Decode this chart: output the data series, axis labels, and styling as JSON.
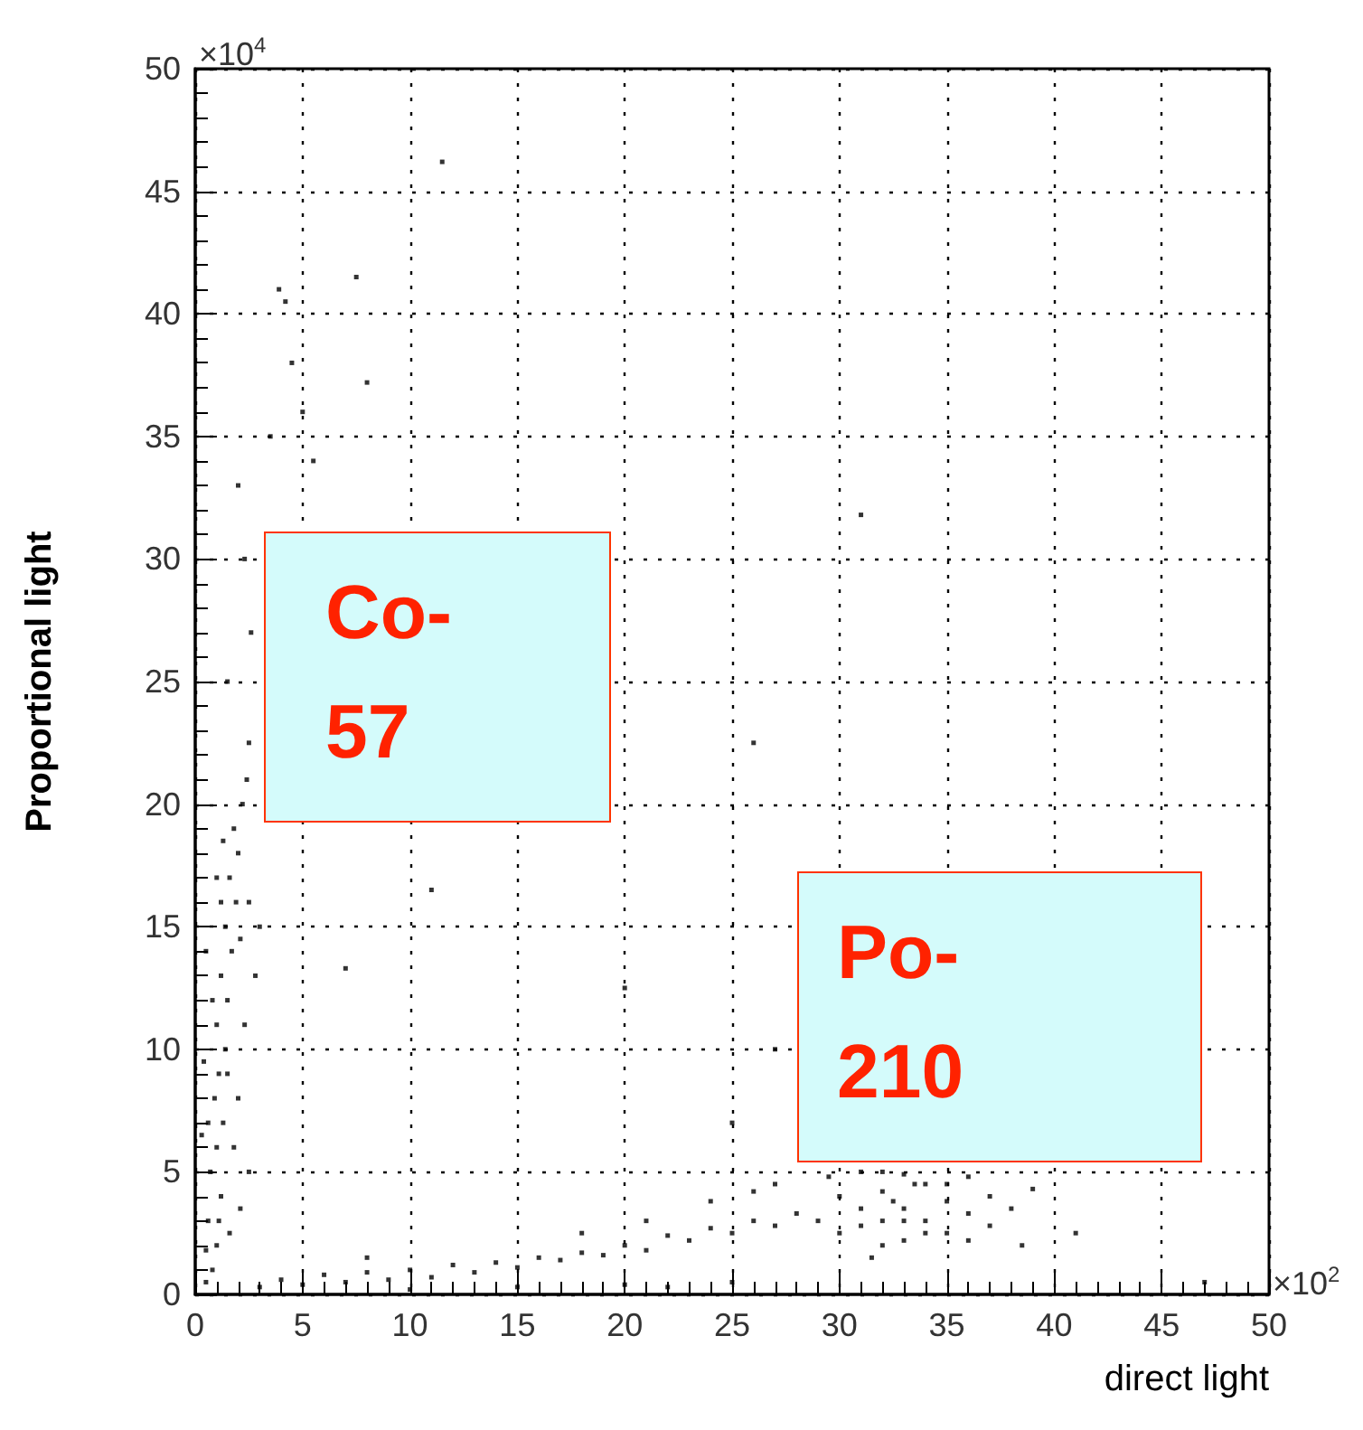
{
  "chart_data": {
    "type": "scatter",
    "xlabel": "direct light",
    "ylabel": "Proportional light",
    "color": "#000000",
    "marker": "square",
    "grid": true,
    "xlim": [
      0,
      50
    ],
    "ylim": [
      0,
      50
    ],
    "xticks": [
      0,
      5,
      10,
      15,
      20,
      25,
      30,
      35,
      40,
      45,
      50
    ],
    "yticks": [
      0,
      5,
      10,
      15,
      20,
      25,
      30,
      35,
      40,
      45,
      50
    ],
    "annotations": [
      "×10$^{4}$",
      "×10$^{2}$",
      "Co-\n57",
      "Po-\n210"
    ],
    "x": [
      0.5,
      0.8,
      1,
      0.6,
      1.2,
      0.7,
      1,
      1.3,
      0.9,
      1.1,
      1.4,
      1.0,
      1.5,
      1.2,
      1.7,
      1.4,
      1.9,
      1.6,
      2.0,
      1.8,
      2.2,
      2.4,
      2.5,
      1.5,
      2.6,
      2.3,
      2,
      3.5,
      4.5,
      4.2,
      3.9,
      5,
      5.5,
      7.5,
      11.5,
      8,
      2.5,
      2,
      0.4,
      2.3,
      0.5,
      2.8,
      1,
      2.5,
      3,
      0.5,
      1.6,
      2.1,
      0.3,
      1.8,
      1.2,
      0.8,
      1.5,
      0.6,
      1.1,
      2.1,
      1.3,
      3,
      4,
      5,
      6,
      7,
      8,
      9,
      10,
      11,
      12,
      13,
      14,
      15,
      16,
      17,
      18,
      19,
      20,
      21,
      22,
      23,
      24,
      25,
      26,
      27,
      28,
      10,
      15,
      20,
      22,
      25,
      8,
      18,
      21,
      24,
      26,
      27,
      29,
      30,
      30,
      31,
      31,
      32,
      32,
      32,
      33,
      33,
      33,
      34,
      34,
      35,
      35,
      36,
      36,
      37,
      37,
      38,
      39,
      38.5,
      31.5,
      29.5,
      31,
      32.5,
      33.5,
      34,
      35,
      33,
      32,
      36,
      11,
      26,
      20,
      27,
      25,
      31,
      41,
      47,
      7
    ],
    "values": [
      0.5,
      1,
      2,
      3,
      4,
      5,
      6,
      7,
      8,
      9,
      10,
      11,
      12,
      13,
      14,
      15,
      16,
      17,
      18,
      19,
      20,
      21,
      22.5,
      25,
      27,
      30,
      33,
      35,
      38,
      40.5,
      41,
      36,
      34,
      41.5,
      46.2,
      37.2,
      5,
      8,
      9.5,
      11,
      14,
      13,
      17,
      16,
      15,
      1.8,
      2.5,
      3.5,
      6.5,
      6,
      16,
      12,
      9,
      7,
      3,
      14.5,
      18.5,
      0.3,
      0.6,
      0.4,
      0.8,
      0.5,
      0.9,
      0.6,
      1.0,
      0.7,
      1.2,
      0.9,
      1.3,
      1.1,
      1.5,
      1.4,
      1.7,
      1.6,
      2.0,
      1.8,
      2.4,
      2.2,
      2.7,
      2.5,
      3.0,
      2.8,
      3.3,
      0.2,
      0.3,
      0.4,
      0.3,
      0.5,
      1.5,
      2.5,
      3,
      3.8,
      4.2,
      4.5,
      3,
      2.5,
      4,
      3.5,
      5,
      2,
      3,
      4.2,
      3.5,
      4.9,
      2.2,
      3,
      4.5,
      3.8,
      2.5,
      3.3,
      4.8,
      4,
      2.8,
      3.5,
      4.3,
      2,
      1.5,
      4.8,
      2.8,
      3.8,
      4.5,
      2.5,
      4.5,
      3,
      5,
      2.2,
      16.5,
      22.5,
      12.5,
      10,
      7,
      31.8,
      2.5,
      0.5,
      13.3
    ]
  }
}
